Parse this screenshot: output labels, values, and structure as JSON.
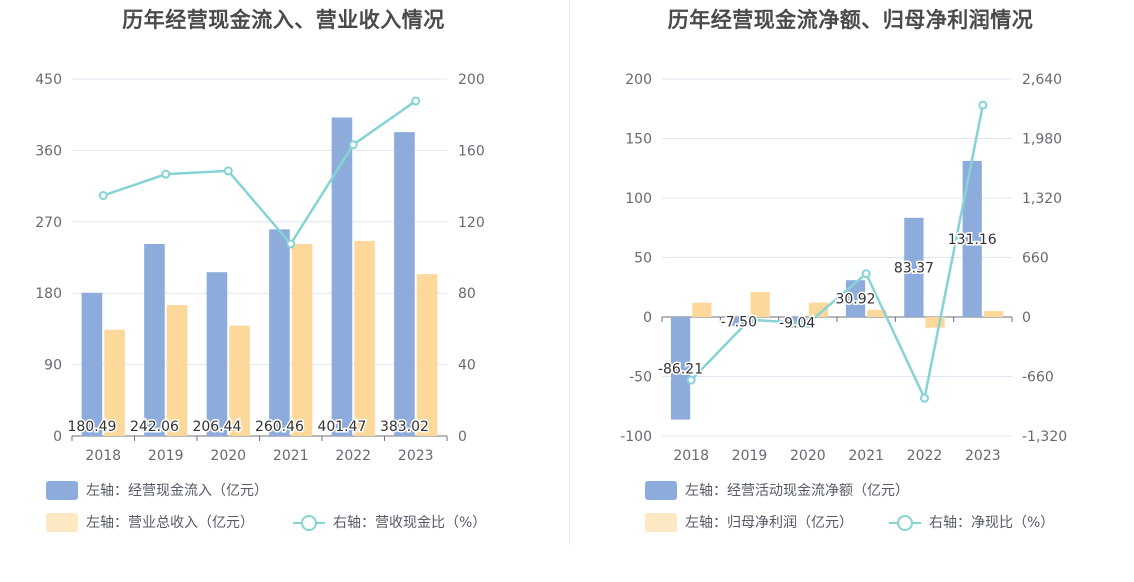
{
  "chart_data": [
    {
      "type": "bar",
      "title": "历年经营现金流入、营业收入情况",
      "categories": [
        "2018",
        "2019",
        "2020",
        "2021",
        "2022",
        "2023"
      ],
      "left_axis": {
        "ticks": [
          "0",
          "90",
          "180",
          "270",
          "360",
          "450"
        ],
        "range": [
          0,
          450
        ]
      },
      "right_axis": {
        "ticks": [
          "0",
          "40",
          "80",
          "120",
          "160",
          "200"
        ],
        "range": [
          0,
          200
        ]
      },
      "series": [
        {
          "name": "左轴：经营现金流入（亿元）",
          "type": "bar",
          "axis": "left",
          "color": "#8eacdb",
          "values": [
            180.49,
            242.06,
            206.44,
            260.46,
            401.47,
            383.02
          ],
          "labels": [
            "180.49",
            "242.06",
            "206.44",
            "260.46",
            "401.47",
            "383.02"
          ]
        },
        {
          "name": "左轴：营业总收入（亿元）",
          "type": "bar",
          "axis": "left",
          "color": "#fdd89b",
          "legend_color": "#fde8c4",
          "values": [
            134,
            165,
            139,
            242,
            246,
            204
          ]
        },
        {
          "name": "右轴：营收现金比（%）",
          "type": "line",
          "axis": "right",
          "color": "#86d3d5",
          "values": [
            134.7,
            146.7,
            148.5,
            107.6,
            163.2,
            187.7
          ]
        }
      ]
    },
    {
      "type": "bar",
      "title": "历年经营现金流净额、归母净利润情况",
      "categories": [
        "2018",
        "2019",
        "2020",
        "2021",
        "2022",
        "2023"
      ],
      "left_axis": {
        "ticks": [
          "-100",
          "-50",
          "0",
          "50",
          "100",
          "150",
          "200"
        ],
        "range": [
          -100,
          200
        ]
      },
      "right_axis": {
        "ticks": [
          "-1,320",
          "-660",
          "0",
          "660",
          "1,320",
          "1,980",
          "2,640"
        ],
        "range": [
          -1320,
          2640
        ]
      },
      "series": [
        {
          "name": "左轴：经营活动现金流净额（亿元）",
          "type": "bar",
          "axis": "left",
          "color": "#8eacdb",
          "values": [
            -86.21,
            -7.5,
            -9.04,
            30.92,
            83.37,
            131.16
          ],
          "labels": [
            "-86.21",
            "-7.50",
            "-9.04",
            "30.92",
            "83.37",
            "131.16"
          ]
        },
        {
          "name": "左轴：归母净利润（亿元）",
          "type": "bar",
          "axis": "left",
          "color": "#fdd89b",
          "legend_color": "#fde8c4",
          "values": [
            12,
            21,
            12,
            6,
            -9,
            5
          ]
        },
        {
          "name": "右轴：净现比（%）",
          "type": "line",
          "axis": "right",
          "color": "#86d3d5",
          "values": [
            -700,
            -30,
            -70,
            480,
            -900,
            2350
          ]
        }
      ]
    }
  ]
}
